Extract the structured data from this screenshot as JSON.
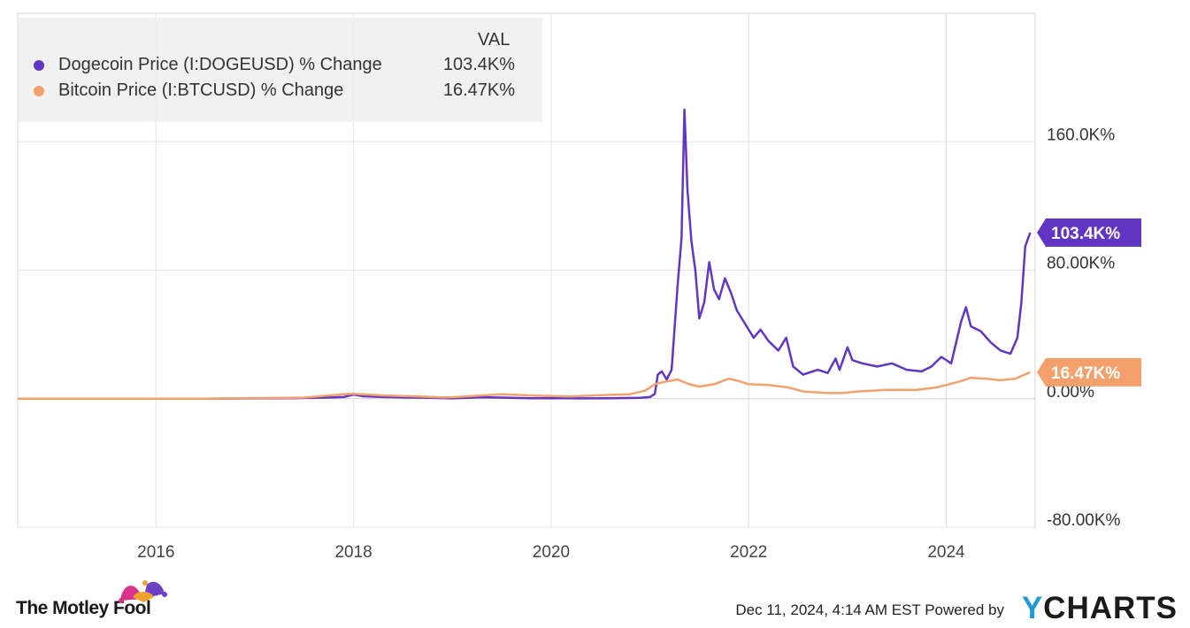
{
  "chart_data": {
    "type": "line",
    "legend": {
      "header": "VAL",
      "placement": "top-left"
    },
    "series": [
      {
        "name": "Dogecoin Price (I:DOGEUSD) % Change",
        "value_label": "103.4K%",
        "end_badge": "103.4K%",
        "color": "#6236c4",
        "points": [
          [
            2014.6,
            0
          ],
          [
            2015.0,
            0
          ],
          [
            2015.5,
            0
          ],
          [
            2016.0,
            0
          ],
          [
            2016.5,
            0
          ],
          [
            2017.0,
            200
          ],
          [
            2017.3,
            300
          ],
          [
            2017.6,
            500
          ],
          [
            2017.9,
            1000
          ],
          [
            2018.0,
            2500
          ],
          [
            2018.1,
            1500
          ],
          [
            2018.3,
            1000
          ],
          [
            2018.6,
            700
          ],
          [
            2018.8,
            500
          ],
          [
            2019.0,
            200
          ],
          [
            2019.3,
            900
          ],
          [
            2019.5,
            700
          ],
          [
            2019.8,
            300
          ],
          [
            2020.0,
            300
          ],
          [
            2020.3,
            200
          ],
          [
            2020.6,
            300
          ],
          [
            2020.9,
            500
          ],
          [
            2021.0,
            1000
          ],
          [
            2021.05,
            3000
          ],
          [
            2021.08,
            15000
          ],
          [
            2021.12,
            17000
          ],
          [
            2021.17,
            12000
          ],
          [
            2021.22,
            18000
          ],
          [
            2021.28,
            70000
          ],
          [
            2021.32,
            100000
          ],
          [
            2021.35,
            180000
          ],
          [
            2021.38,
            130000
          ],
          [
            2021.42,
            98000
          ],
          [
            2021.46,
            80000
          ],
          [
            2021.5,
            50000
          ],
          [
            2021.55,
            60000
          ],
          [
            2021.6,
            85000
          ],
          [
            2021.65,
            68000
          ],
          [
            2021.7,
            62000
          ],
          [
            2021.76,
            75000
          ],
          [
            2021.82,
            66000
          ],
          [
            2021.88,
            55000
          ],
          [
            2021.95,
            48000
          ],
          [
            2022.05,
            38000
          ],
          [
            2022.12,
            43000
          ],
          [
            2022.2,
            36000
          ],
          [
            2022.3,
            30000
          ],
          [
            2022.38,
            38000
          ],
          [
            2022.45,
            20000
          ],
          [
            2022.55,
            15000
          ],
          [
            2022.7,
            18000
          ],
          [
            2022.8,
            16000
          ],
          [
            2022.88,
            25000
          ],
          [
            2022.92,
            18000
          ],
          [
            2023.0,
            32000
          ],
          [
            2023.05,
            24000
          ],
          [
            2023.15,
            22000
          ],
          [
            2023.3,
            20000
          ],
          [
            2023.45,
            22000
          ],
          [
            2023.6,
            18000
          ],
          [
            2023.75,
            17000
          ],
          [
            2023.85,
            20000
          ],
          [
            2023.95,
            26000
          ],
          [
            2024.05,
            22000
          ],
          [
            2024.15,
            48000
          ],
          [
            2024.2,
            57000
          ],
          [
            2024.25,
            45000
          ],
          [
            2024.35,
            42000
          ],
          [
            2024.45,
            35000
          ],
          [
            2024.55,
            30000
          ],
          [
            2024.65,
            28000
          ],
          [
            2024.72,
            38000
          ],
          [
            2024.76,
            60000
          ],
          [
            2024.8,
            95000
          ],
          [
            2024.85,
            103400
          ]
        ]
      },
      {
        "name": "Bitcoin Price (I:BTCUSD) % Change",
        "value_label": "16.47K%",
        "end_badge": "16.47K%",
        "color": "#f4a06c",
        "points": [
          [
            2014.6,
            0
          ],
          [
            2015.5,
            0
          ],
          [
            2016.5,
            0
          ],
          [
            2017.5,
            700
          ],
          [
            2017.9,
            2800
          ],
          [
            2018.0,
            3000
          ],
          [
            2018.3,
            2000
          ],
          [
            2018.6,
            1500
          ],
          [
            2018.9,
            800
          ],
          [
            2019.0,
            900
          ],
          [
            2019.5,
            2800
          ],
          [
            2019.9,
            1800
          ],
          [
            2020.2,
            1400
          ],
          [
            2020.5,
            2200
          ],
          [
            2020.8,
            2800
          ],
          [
            2020.95,
            5000
          ],
          [
            2021.05,
            9000
          ],
          [
            2021.15,
            10500
          ],
          [
            2021.28,
            12000
          ],
          [
            2021.4,
            9000
          ],
          [
            2021.5,
            7500
          ],
          [
            2021.65,
            9000
          ],
          [
            2021.8,
            12500
          ],
          [
            2021.9,
            11000
          ],
          [
            2022.0,
            9000
          ],
          [
            2022.2,
            8500
          ],
          [
            2022.4,
            7000
          ],
          [
            2022.55,
            4500
          ],
          [
            2022.8,
            3500
          ],
          [
            2022.95,
            3500
          ],
          [
            2023.1,
            4500
          ],
          [
            2023.4,
            5500
          ],
          [
            2023.7,
            5500
          ],
          [
            2023.9,
            7000
          ],
          [
            2024.0,
            8500
          ],
          [
            2024.15,
            11000
          ],
          [
            2024.25,
            13000
          ],
          [
            2024.4,
            12500
          ],
          [
            2024.55,
            11500
          ],
          [
            2024.7,
            12500
          ],
          [
            2024.85,
            16470
          ]
        ]
      }
    ],
    "x_ticks": [
      "2016",
      "2018",
      "2020",
      "2022",
      "2024"
    ],
    "x_tick_values": [
      2016,
      2018,
      2020,
      2022,
      2024
    ],
    "xlim": [
      2014.6,
      2024.9
    ],
    "y_ticks": [
      {
        "value": 160000,
        "label": "160.0K%"
      },
      {
        "value": 80000,
        "label": "80.00K%"
      },
      {
        "value": 0,
        "label": "0.00%"
      },
      {
        "value": -80000,
        "label": "-80.00K%"
      }
    ],
    "ylim": [
      -80000,
      240000
    ],
    "grid": true
  },
  "footer": {
    "brand": "The Motley Fool",
    "timestamp": "Dec 11, 2024, 4:14 AM EST Powered by",
    "logo_y": "Y",
    "logo_rest": "CHARTS"
  },
  "colors": {
    "dogecoin": "#6236c4",
    "bitcoin": "#f4a06c",
    "grid": "#e4e4e4",
    "ycharts_accent": "#1f9ad6"
  }
}
